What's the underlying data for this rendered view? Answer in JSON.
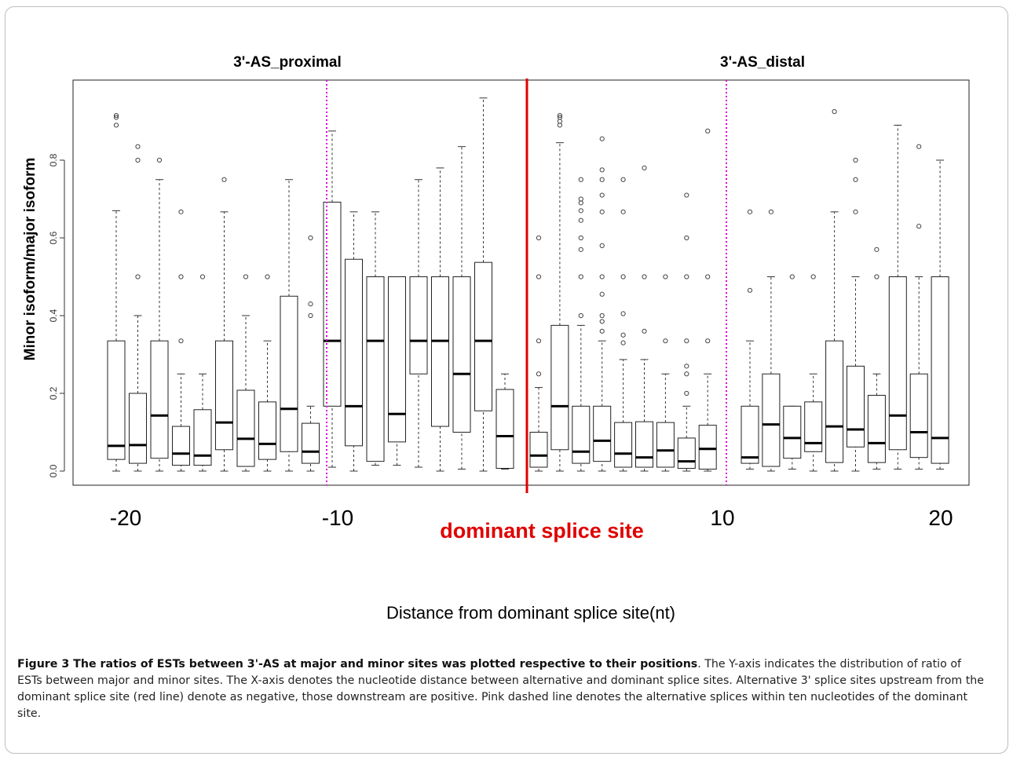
{
  "chart_data": {
    "type": "boxplot",
    "panel_titles": [
      "3'-AS_proximal",
      "3'-AS_distal"
    ],
    "ylabel": "Minor isoform/major isoform",
    "xlabel": "Distance from dominant splice site(nt)",
    "ylim": [
      0,
      0.95
    ],
    "yticks": [
      "0.0",
      "0.2",
      "0.4",
      "0.6",
      "0.8"
    ],
    "xtick_labels": [
      "-20",
      "-10",
      "10",
      "20"
    ],
    "dominant_label": "dominant splice site",
    "colors": {
      "dominant_line": "#e00000",
      "window_line": "#e000e0",
      "dominant_text": "#e00000"
    },
    "boxes": [
      {
        "pos": -20,
        "low": 0.0,
        "q1": 0.03,
        "med": 0.065,
        "q3": 0.335,
        "high": 0.67,
        "out": [
          0.89,
          0.91,
          0.915
        ]
      },
      {
        "pos": -19,
        "low": 0.0,
        "q1": 0.02,
        "med": 0.067,
        "q3": 0.2,
        "high": 0.4,
        "out": [
          0.5,
          0.8,
          0.835
        ]
      },
      {
        "pos": -18,
        "low": 0.0,
        "q1": 0.033,
        "med": 0.143,
        "q3": 0.335,
        "high": 0.75,
        "out": [
          0.8
        ]
      },
      {
        "pos": -17,
        "low": 0.0,
        "q1": 0.015,
        "med": 0.045,
        "q3": 0.115,
        "high": 0.25,
        "out": [
          0.335,
          0.5,
          0.667
        ]
      },
      {
        "pos": -16,
        "low": 0.0,
        "q1": 0.015,
        "med": 0.04,
        "q3": 0.158,
        "high": 0.25,
        "out": [
          0.5
        ]
      },
      {
        "pos": -15,
        "low": 0.0,
        "q1": 0.055,
        "med": 0.125,
        "q3": 0.335,
        "high": 0.667,
        "out": [
          0.75
        ]
      },
      {
        "pos": -14,
        "low": 0.0,
        "q1": 0.012,
        "med": 0.083,
        "q3": 0.208,
        "high": 0.4,
        "out": [
          0.5
        ]
      },
      {
        "pos": -13,
        "low": 0.0,
        "q1": 0.03,
        "med": 0.07,
        "q3": 0.178,
        "high": 0.335,
        "out": [
          0.5
        ]
      },
      {
        "pos": -12,
        "low": 0.0,
        "q1": 0.05,
        "med": 0.16,
        "q3": 0.45,
        "high": 0.75,
        "out": []
      },
      {
        "pos": -11,
        "low": 0.0,
        "q1": 0.02,
        "med": 0.05,
        "q3": 0.123,
        "high": 0.167,
        "out": [
          0.4,
          0.43,
          0.6
        ]
      },
      {
        "pos": -10,
        "low": 0.01,
        "q1": 0.167,
        "med": 0.335,
        "q3": 0.692,
        "high": 0.875,
        "out": []
      },
      {
        "pos": -9,
        "low": 0.0,
        "q1": 0.065,
        "med": 0.167,
        "q3": 0.545,
        "high": 0.667,
        "out": []
      },
      {
        "pos": -8,
        "low": 0.015,
        "q1": 0.025,
        "med": 0.335,
        "q3": 0.5,
        "high": 0.667,
        "out": []
      },
      {
        "pos": -7,
        "low": 0.015,
        "q1": 0.075,
        "med": 0.147,
        "q3": 0.5,
        "high": 0.5,
        "out": []
      },
      {
        "pos": -6,
        "low": 0.01,
        "q1": 0.25,
        "med": 0.335,
        "q3": 0.5,
        "high": 0.75,
        "out": []
      },
      {
        "pos": -5,
        "low": 0.0,
        "q1": 0.115,
        "med": 0.335,
        "q3": 0.5,
        "high": 0.78,
        "out": []
      },
      {
        "pos": -4,
        "low": 0.005,
        "q1": 0.1,
        "med": 0.25,
        "q3": 0.5,
        "high": 0.835,
        "out": []
      },
      {
        "pos": -3,
        "low": 0.0,
        "q1": 0.155,
        "med": 0.335,
        "q3": 0.537,
        "high": 0.96,
        "out": []
      },
      {
        "pos": -2,
        "low": 0.005,
        "q1": 0.007,
        "med": 0.09,
        "q3": 0.21,
        "high": 0.25,
        "out": []
      },
      {
        "pos": 1,
        "low": 0.0,
        "q1": 0.01,
        "med": 0.04,
        "q3": 0.1,
        "high": 0.215,
        "out": [
          0.25,
          0.335,
          0.5,
          0.6
        ]
      },
      {
        "pos": 2,
        "low": 0.0,
        "q1": 0.055,
        "med": 0.167,
        "q3": 0.375,
        "high": 0.845,
        "out": [
          0.89,
          0.9,
          0.91,
          0.915
        ]
      },
      {
        "pos": 3,
        "low": 0.0,
        "q1": 0.02,
        "med": 0.05,
        "q3": 0.167,
        "high": 0.375,
        "out": [
          0.4,
          0.5,
          0.57,
          0.6,
          0.645,
          0.67,
          0.69,
          0.7,
          0.75
        ]
      },
      {
        "pos": 4,
        "low": 0.0,
        "q1": 0.025,
        "med": 0.078,
        "q3": 0.167,
        "high": 0.335,
        "out": [
          0.36,
          0.385,
          0.4,
          0.455,
          0.5,
          0.58,
          0.667,
          0.71,
          0.75,
          0.775,
          0.855
        ]
      },
      {
        "pos": 5,
        "low": 0.0,
        "q1": 0.01,
        "med": 0.045,
        "q3": 0.125,
        "high": 0.287,
        "out": [
          0.33,
          0.35,
          0.405,
          0.5,
          0.667,
          0.75
        ]
      },
      {
        "pos": 6,
        "low": 0.0,
        "q1": 0.01,
        "med": 0.035,
        "q3": 0.127,
        "high": 0.287,
        "out": [
          0.36,
          0.5,
          0.78
        ]
      },
      {
        "pos": 7,
        "low": 0.0,
        "q1": 0.01,
        "med": 0.053,
        "q3": 0.125,
        "high": 0.25,
        "out": [
          0.335,
          0.5
        ]
      },
      {
        "pos": 8,
        "low": 0.0,
        "q1": 0.007,
        "med": 0.025,
        "q3": 0.085,
        "high": 0.167,
        "out": [
          0.2,
          0.25,
          0.27,
          0.335,
          0.5,
          0.6,
          0.71
        ]
      },
      {
        "pos": 9,
        "low": 0.0,
        "q1": 0.005,
        "med": 0.057,
        "q3": 0.118,
        "high": 0.25,
        "out": [
          0.335,
          0.5,
          0.875
        ]
      },
      {
        "pos": 11,
        "low": 0.005,
        "q1": 0.02,
        "med": 0.035,
        "q3": 0.167,
        "high": 0.335,
        "out": [
          0.465,
          0.667
        ]
      },
      {
        "pos": 12,
        "low": 0.0,
        "q1": 0.012,
        "med": 0.12,
        "q3": 0.25,
        "high": 0.5,
        "out": [
          0.667
        ]
      },
      {
        "pos": 13,
        "low": 0.005,
        "q1": 0.033,
        "med": 0.085,
        "q3": 0.167,
        "high": 0.167,
        "out": [
          0.5
        ]
      },
      {
        "pos": 14,
        "low": 0.0,
        "q1": 0.05,
        "med": 0.072,
        "q3": 0.178,
        "high": 0.25,
        "out": [
          0.5
        ]
      },
      {
        "pos": 15,
        "low": 0.0,
        "q1": 0.022,
        "med": 0.115,
        "q3": 0.335,
        "high": 0.667,
        "out": [
          0.925
        ]
      },
      {
        "pos": 16,
        "low": 0.0,
        "q1": 0.062,
        "med": 0.107,
        "q3": 0.27,
        "high": 0.5,
        "out": [
          0.667,
          0.75,
          0.8
        ]
      },
      {
        "pos": 17,
        "low": 0.005,
        "q1": 0.022,
        "med": 0.072,
        "q3": 0.195,
        "high": 0.25,
        "out": [
          0.5,
          0.57
        ]
      },
      {
        "pos": 18,
        "low": 0.005,
        "q1": 0.055,
        "med": 0.143,
        "q3": 0.5,
        "high": 0.89,
        "out": []
      },
      {
        "pos": 19,
        "low": 0.005,
        "q1": 0.035,
        "med": 0.1,
        "q3": 0.25,
        "high": 0.5,
        "out": [
          0.63,
          0.835
        ]
      },
      {
        "pos": 20,
        "low": 0.005,
        "q1": 0.02,
        "med": 0.085,
        "q3": 0.5,
        "high": 0.8,
        "out": []
      }
    ]
  },
  "caption": {
    "label": "Figure 3 The ratios of ESTs between 3'-AS at major and minor sites was plotted respective to their positions",
    "text": ". The Y-axis indicates the distribution of ratio of ESTs between major and minor sites. The X-axis denotes the nucleotide distance between alternative and dominant splice sites. Alternative 3' splice sites upstream from the dominant splice site (red line) denote as negative, those downstream are positive. Pink dashed line denotes the alternative splices within ten nucleotides of the dominant site."
  }
}
